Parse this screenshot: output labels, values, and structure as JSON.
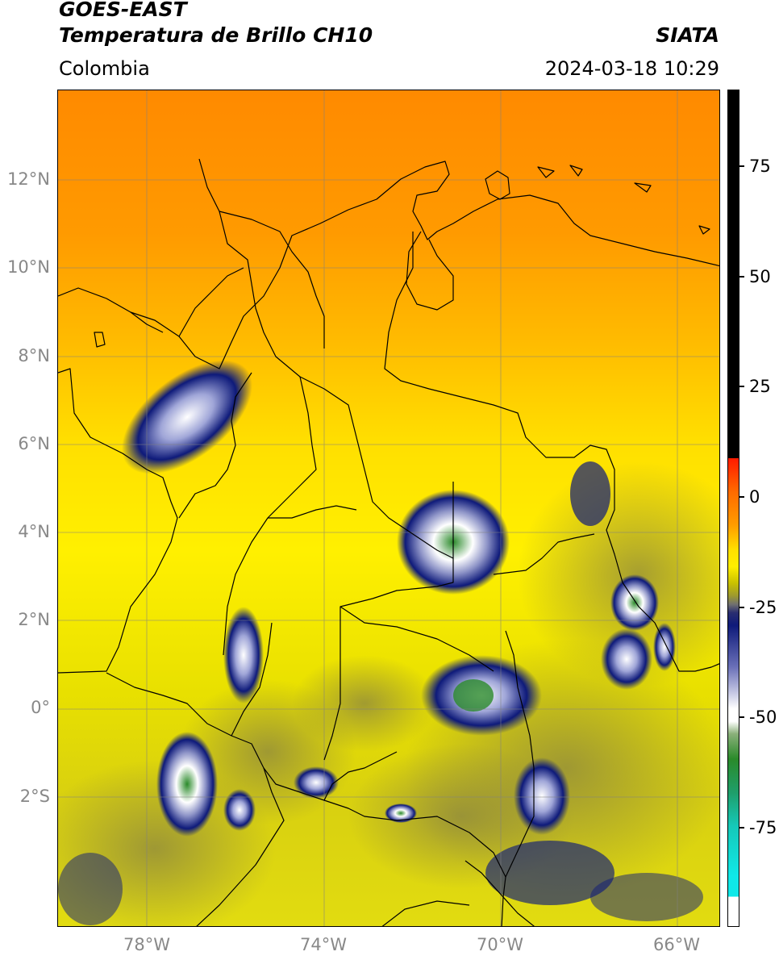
{
  "header": {
    "satellite": "GOES-EAST",
    "product": "Temperatura de Brillo CH10",
    "brand": "SIATA",
    "region": "Colombia",
    "timestamp": "2024-03-18 10:29"
  },
  "map": {
    "lon_range": [
      -80,
      -65
    ],
    "lat_range": [
      -5,
      14
    ],
    "lat_labels": [
      "12°N",
      "10°N",
      "8°N",
      "6°N",
      "4°N",
      "2°N",
      "0°",
      "2°S"
    ],
    "lon_labels": [
      "78°W",
      "74°W",
      "70°W",
      "66°W"
    ]
  },
  "colorbar": {
    "range": [
      -100,
      90
    ],
    "ticks": [
      "75",
      "50",
      "25",
      "0",
      "-25",
      "-50",
      "-75"
    ],
    "colors": {
      "warm": "#000000",
      "red": "#ff2200",
      "orange": "#ff8800",
      "yellow": "#ffee00",
      "olive": "#bdb520",
      "navy": "#0e1a7a",
      "white": "#ffffff",
      "green": "#2a8a2a",
      "cyan": "#10e0e0"
    }
  }
}
